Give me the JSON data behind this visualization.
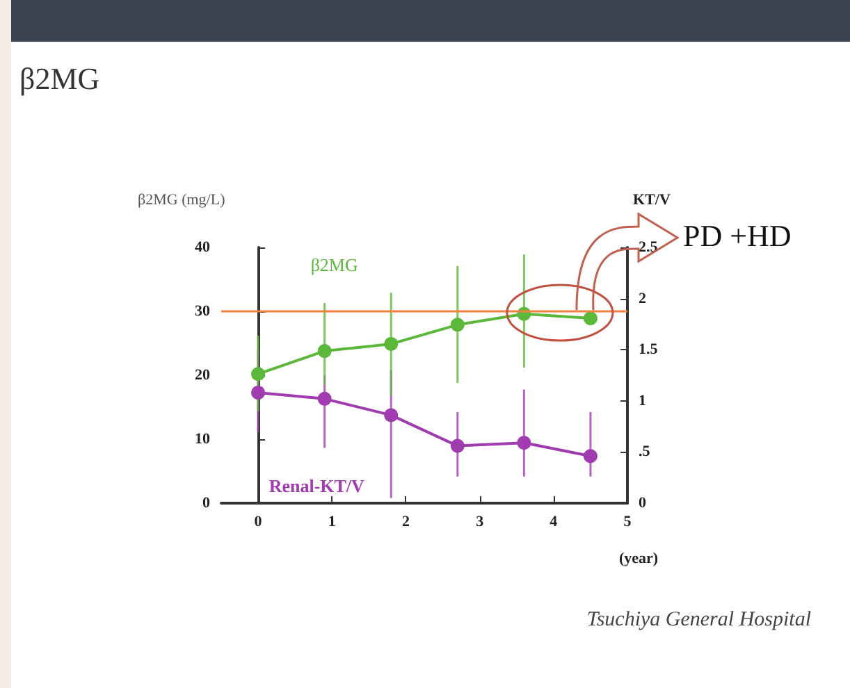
{
  "chart_data": {
    "type": "line",
    "title": "β2MG",
    "ylabel": "β2MG (mg/L)",
    "y2label": "KT/V",
    "xlabel": "(year)",
    "x": [
      0,
      0.9,
      1.8,
      2.7,
      3.6,
      4.5
    ],
    "series": [
      {
        "name": "β2MG",
        "color": "#5cb83a",
        "values": [
          20.2,
          23.8,
          24.9,
          27.9,
          29.6,
          28.9
        ],
        "errors": [
          [
            14.3,
            26.2
          ],
          [
            18.5,
            31.3
          ],
          [
            16.8,
            32.9
          ],
          [
            18.8,
            37.1
          ],
          [
            21.2,
            38.9
          ],
          null
        ]
      },
      {
        "name": "Renal-KT/V",
        "color": "#a03cb0",
        "axis": "y2",
        "values": [
          1.08,
          1.02,
          0.86,
          0.56,
          0.59,
          0.46
        ],
        "errors": [
          [
            0.69,
            1.49
          ],
          [
            0.54,
            1.25
          ],
          [
            0.05,
            1.3
          ],
          [
            0.26,
            0.89
          ],
          [
            0.26,
            1.11
          ],
          [
            0.26,
            0.89
          ]
        ]
      }
    ],
    "xlim": [
      -0.5,
      5
    ],
    "xticks": [
      0,
      1,
      2,
      3,
      4,
      5
    ],
    "ylim": [
      0,
      40
    ],
    "yticks": [
      0,
      10,
      20,
      30,
      40
    ],
    "y2lim": [
      0,
      2.5
    ],
    "y2ticks": [
      0,
      {
        "value": 0.5,
        "label": ".5"
      },
      1,
      1.5,
      2,
      2.5
    ],
    "ref_lines": [
      {
        "axis": "y",
        "value": 30,
        "color": "#f08040"
      }
    ],
    "annotations": [
      "PD +HD",
      "Tsuchiya General Hospital"
    ],
    "marker": "circle",
    "grid": false,
    "legend": false
  }
}
